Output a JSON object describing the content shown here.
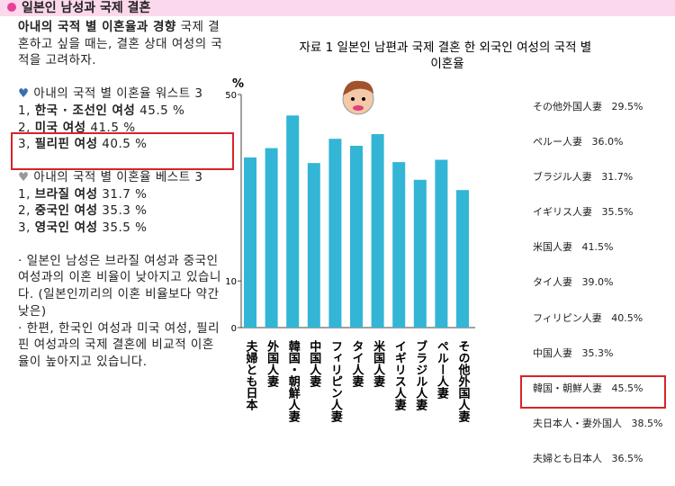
{
  "header": {
    "title": "일본인 남성과 국제 결혼"
  },
  "intro": {
    "bold": "아내의 국적 별 이혼율과 경향",
    "text": " 국제 결혼하고 싶을 때는, 결혼 상대 여성의 국적을 고려하자."
  },
  "worst": {
    "heading": "아내의 국적 별 이혼율 워스트 3",
    "items": [
      {
        "rank": "1,",
        "name": "한국 · 조선인 여성",
        "value": "45.5 %"
      },
      {
        "rank": "2,",
        "name": "미국 여성",
        "value": "41.5 %"
      },
      {
        "rank": "3,",
        "name": "필리핀 여성",
        "value": "40.5 %"
      }
    ]
  },
  "best": {
    "heading": "아내의 국적 별 이혼율 베스트 3",
    "items": [
      {
        "rank": "1,",
        "name": "브라질 여성",
        "value": "31.7 %"
      },
      {
        "rank": "2,",
        "name": "중국인 여성",
        "value": "35.3 %"
      },
      {
        "rank": "3,",
        "name": "영국인 여성",
        "value": "35.5 %"
      }
    ]
  },
  "notes": [
    "· 일본인 남성은 브라질 여성과 중국인 여성과의 이혼 비율이 낮아지고 있습니다. (일본인끼리의 이혼 비율보다 약간 낮은)",
    "· 한편, 한국인 여성과 미국 여성, 필리핀 여성과의 국제 결혼에 비교적 이혼율이 높아지고 있습니다."
  ],
  "chart_data": {
    "type": "bar",
    "title": "자료 1 일본인 남편과 국제 결혼 한 외국인 여성의 국적 별 이혼율",
    "y_label": "%",
    "categories": [
      "夫婦とも日本",
      "外国人妻",
      "韓国・朝鮮人妻",
      "中国人妻",
      "フィリピン人妻",
      "タイ人妻",
      "米国人妻",
      "イギリス人妻",
      "ブラジル人妻",
      "ペルー人妻",
      "その他外国人妻"
    ],
    "values": [
      36.5,
      38.5,
      45.5,
      35.3,
      40.5,
      39.0,
      41.5,
      35.5,
      31.7,
      36.0,
      29.5
    ],
    "color": "#33b5d6",
    "ylim": [
      0,
      50
    ],
    "yticks": [
      0,
      10,
      50
    ]
  },
  "rate_list": [
    {
      "label": "その他外国人妻",
      "value": "29.5%"
    },
    {
      "label": "ペルー人妻",
      "value": "36.0%"
    },
    {
      "label": "ブラジル人妻",
      "value": "31.7%"
    },
    {
      "label": "イギリス人妻",
      "value": "35.5%"
    },
    {
      "label": "米国人妻",
      "value": "41.5%"
    },
    {
      "label": "タイ人妻",
      "value": "39.0%"
    },
    {
      "label": "フィリピン人妻",
      "value": "40.5%"
    },
    {
      "label": "中国人妻",
      "value": "35.3%"
    },
    {
      "label": "韓国・朝鮮人妻",
      "value": "45.5%"
    },
    {
      "label": "夫日本人・妻外国人",
      "value": "38.5%"
    },
    {
      "label": "夫婦とも日本人",
      "value": "36.5%"
    }
  ]
}
